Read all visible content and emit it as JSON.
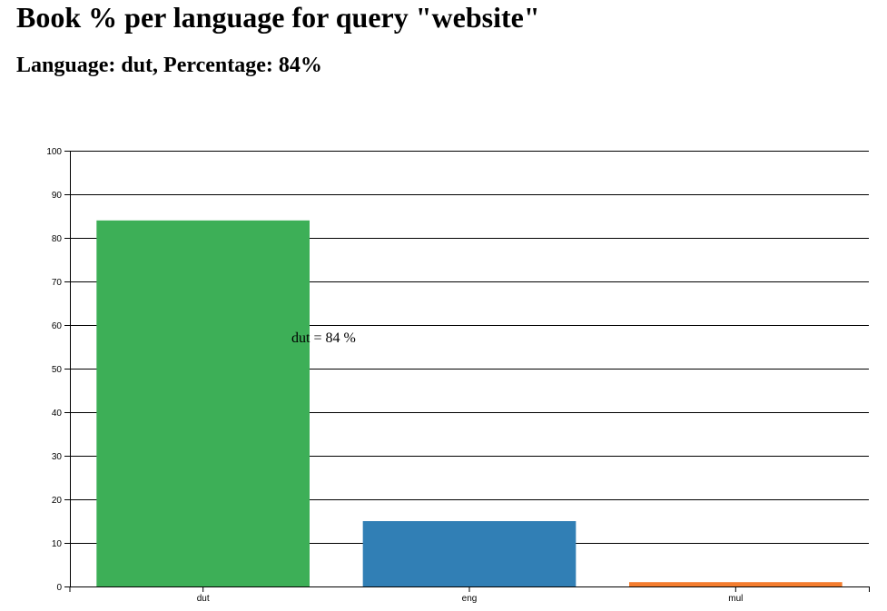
{
  "header": {
    "title": "Book % per language for query \"website\"",
    "subtitle": "Language: dut, Percentage: 84%"
  },
  "chart_data": {
    "type": "bar",
    "categories": [
      "dut",
      "eng",
      "mul"
    ],
    "values": [
      84,
      15,
      1
    ],
    "colors": [
      "#3daf57",
      "#317fb5",
      "#f47d2e"
    ],
    "ylim": [
      0,
      100
    ],
    "yticks": [
      0,
      10,
      20,
      30,
      40,
      50,
      60,
      70,
      80,
      90,
      100
    ],
    "grid": true,
    "annotation": "dut = 84 %"
  }
}
